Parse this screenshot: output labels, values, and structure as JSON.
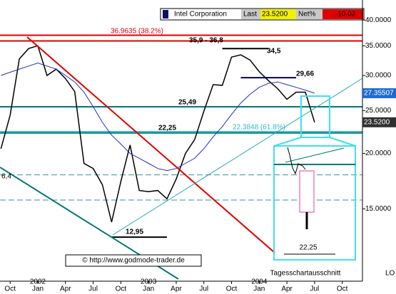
{
  "chart_data": {
    "type": "line",
    "log_scale": true,
    "ylim": [
      10.3,
      44.4
    ],
    "yticks": [
      {
        "value": 40,
        "label": "40.0000"
      },
      {
        "value": 35,
        "label": "35.0000"
      },
      {
        "value": 30,
        "label": "30.0000"
      },
      {
        "value": 25,
        "label": "25.0000"
      },
      {
        "value": 20,
        "label": "20.0000"
      },
      {
        "value": 15,
        "label": "15.0000"
      }
    ],
    "xticks": [
      {
        "value": "2001-10",
        "label": "Oct"
      },
      {
        "value": "2002-01",
        "label": "Jan"
      },
      {
        "value": "2002-04",
        "label": "Apr"
      },
      {
        "value": "2002-07",
        "label": "Jul"
      },
      {
        "value": "2002-10",
        "label": "Oct"
      },
      {
        "value": "2003-01",
        "label": "Jan"
      },
      {
        "value": "2003-04",
        "label": "Apr"
      },
      {
        "value": "2003-07",
        "label": "Jul"
      },
      {
        "value": "2003-10",
        "label": "Oct"
      },
      {
        "value": "2004-01",
        "label": "Jan"
      },
      {
        "value": "2004-04",
        "label": "Apr"
      },
      {
        "value": "2004-07",
        "label": "Jul"
      },
      {
        "value": "2004-10",
        "label": "Oct"
      }
    ],
    "xyears": [
      {
        "value": "2002-01",
        "label": "2002"
      },
      {
        "value": "2003-01",
        "label": "2003"
      },
      {
        "value": "2004-01",
        "label": "2004"
      }
    ],
    "x": [
      "2001-09",
      "2001-10",
      "2001-11",
      "2001-12",
      "2002-01",
      "2002-02",
      "2002-03",
      "2002-04",
      "2002-05",
      "2002-06",
      "2002-07",
      "2002-08",
      "2002-09",
      "2002-10",
      "2002-11",
      "2002-12",
      "2003-01",
      "2003-02",
      "2003-03",
      "2003-04",
      "2003-05",
      "2003-06",
      "2003-07",
      "2003-08",
      "2003-09",
      "2003-10",
      "2003-11",
      "2003-12",
      "2004-01",
      "2004-02",
      "2004-03",
      "2004-04",
      "2004-05",
      "2004-06",
      "2004-07"
    ],
    "series": [
      {
        "color": "#000000",
        "values": [
          20.5,
          24.4,
          32.7,
          34.5,
          35.0,
          30,
          31,
          29.5,
          27.6,
          19,
          18.5,
          17,
          14,
          17.3,
          20.9,
          16.5,
          16.4,
          16.5,
          15.8,
          17.5,
          20,
          21.5,
          24.9,
          28.6,
          28.5,
          33.0,
          33.4,
          32.5,
          30.6,
          29.2,
          28,
          26.5,
          27.5,
          27.5,
          23.52
        ]
      },
      {
        "color": "#2030c0",
        "values": [
          30,
          30.5,
          31,
          31.5,
          32,
          31.5,
          31,
          30,
          29,
          27.5,
          25.5,
          23.5,
          22,
          21,
          20,
          19.5,
          19,
          18.5,
          18.3,
          18.5,
          19,
          19.5,
          20.5,
          21.8,
          23,
          24.5,
          26,
          27.2,
          28.2,
          28.8,
          29,
          28.6,
          28.2,
          27.8,
          27.35507
        ]
      }
    ],
    "hlines": [
      {
        "value": 36.9635,
        "label": "36.9635 (38.2%)",
        "color": "#e00000"
      },
      {
        "value": 35.9,
        "label": "35,9 - 36,8",
        "color": "#e00000"
      },
      {
        "value": 34.5,
        "label": "34,5",
        "color": "#000000",
        "start": "2003-09",
        "end": "2004-02"
      },
      {
        "value": 29.66,
        "label": "29,66",
        "color": "#000060",
        "start": "2003-11",
        "end": "2004-05"
      },
      {
        "value": 25.49,
        "label": "25,49",
        "color": "#007878"
      },
      {
        "value": 22.25,
        "label": "22,25",
        "color": "#007878"
      },
      {
        "value": 22.3848,
        "label": "22.3848 (61.8%)",
        "color": "#30b8c8"
      },
      {
        "value": 12.95,
        "label": "12,95",
        "color": "#000000",
        "start": "2002-09",
        "end": "2003-03"
      },
      {
        "value": 17.9,
        "color": "#2a9a9a",
        "dashed": true
      },
      {
        "value": 15.7,
        "color": "#2a9a9a",
        "dashed": true
      }
    ],
    "level_note": "6,4",
    "right_labels": [
      {
        "value": 27.35507,
        "color": "#1f6ad0"
      },
      {
        "value": 23.52,
        "label": "23.5200",
        "color": "#303030"
      }
    ],
    "header": {
      "name": "Intel Corporation",
      "last_caption": "Last",
      "last": "23.5200",
      "net_caption": "Net%",
      "net": "-10.02"
    },
    "copyright": "© http://www.godmode-trader.de",
    "inset_caption": "Tagesschartausschnitt",
    "inset_label": "22,25",
    "corner": "LO"
  }
}
